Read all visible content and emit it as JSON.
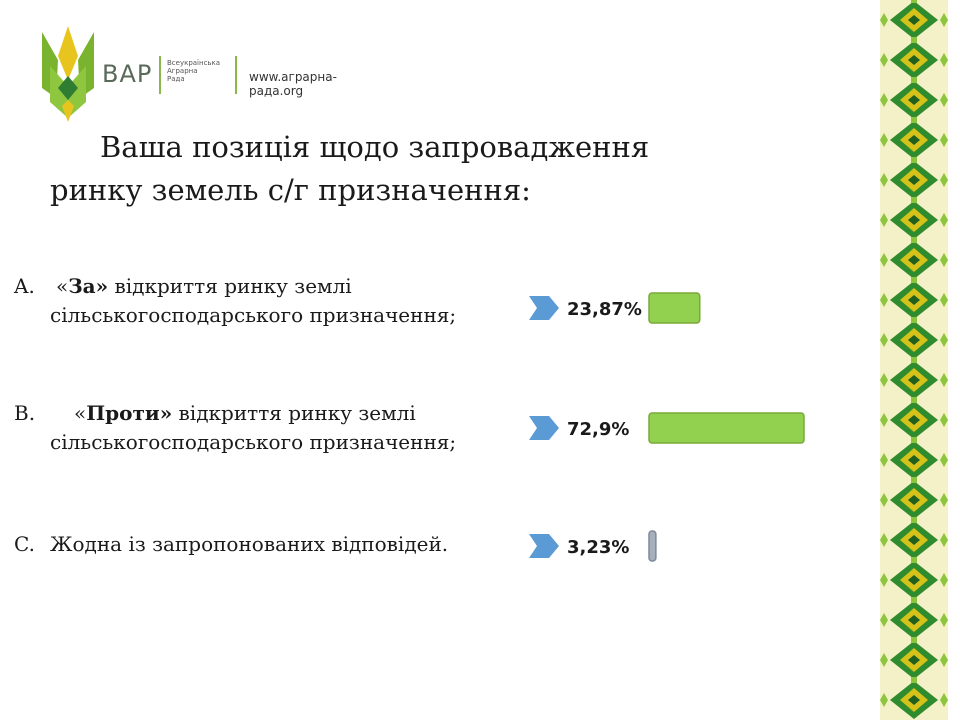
{
  "logo": {
    "brand": "ВАР",
    "org_lines": [
      "Всеукраїнська",
      "Аграрна",
      "Рада"
    ],
    "site": "www.аграрна-рада.org"
  },
  "title": {
    "line1": "Ваша позиція щодо запровадження",
    "line2": "ринку земель с/г призначення:"
  },
  "options": [
    {
      "letter": "A.",
      "open_quote": "«",
      "bold": "За»",
      "rest": " відкриття ринку землі",
      "line2": "сільськогосподарського призначення;"
    },
    {
      "letter": "B.",
      "open_quote": "«",
      "bold": "Проти»",
      "rest": " відкриття ринку землі",
      "line2": "сільськогосподарського призначення;"
    },
    {
      "letter": "C.",
      "text": "Жодна із запропонованих відповідей."
    }
  ],
  "colors": {
    "bar_green": "#92d050",
    "bar_grey": "#a6b0bd",
    "arrow_blue": "#5b9bd5",
    "logo_green": "#7ab32e",
    "logo_yellow": "#e8c51e",
    "ornament_green": "#2e8b2e",
    "ornament_yellow": "#d4c21a"
  },
  "chart_data": {
    "type": "bar",
    "orientation": "horizontal",
    "categories": [
      "A",
      "B",
      "C"
    ],
    "values": [
      23.87,
      72.9,
      3.23
    ],
    "value_labels": [
      "23,87%",
      "72,9%",
      "3,23%"
    ],
    "unit": "%"
  }
}
